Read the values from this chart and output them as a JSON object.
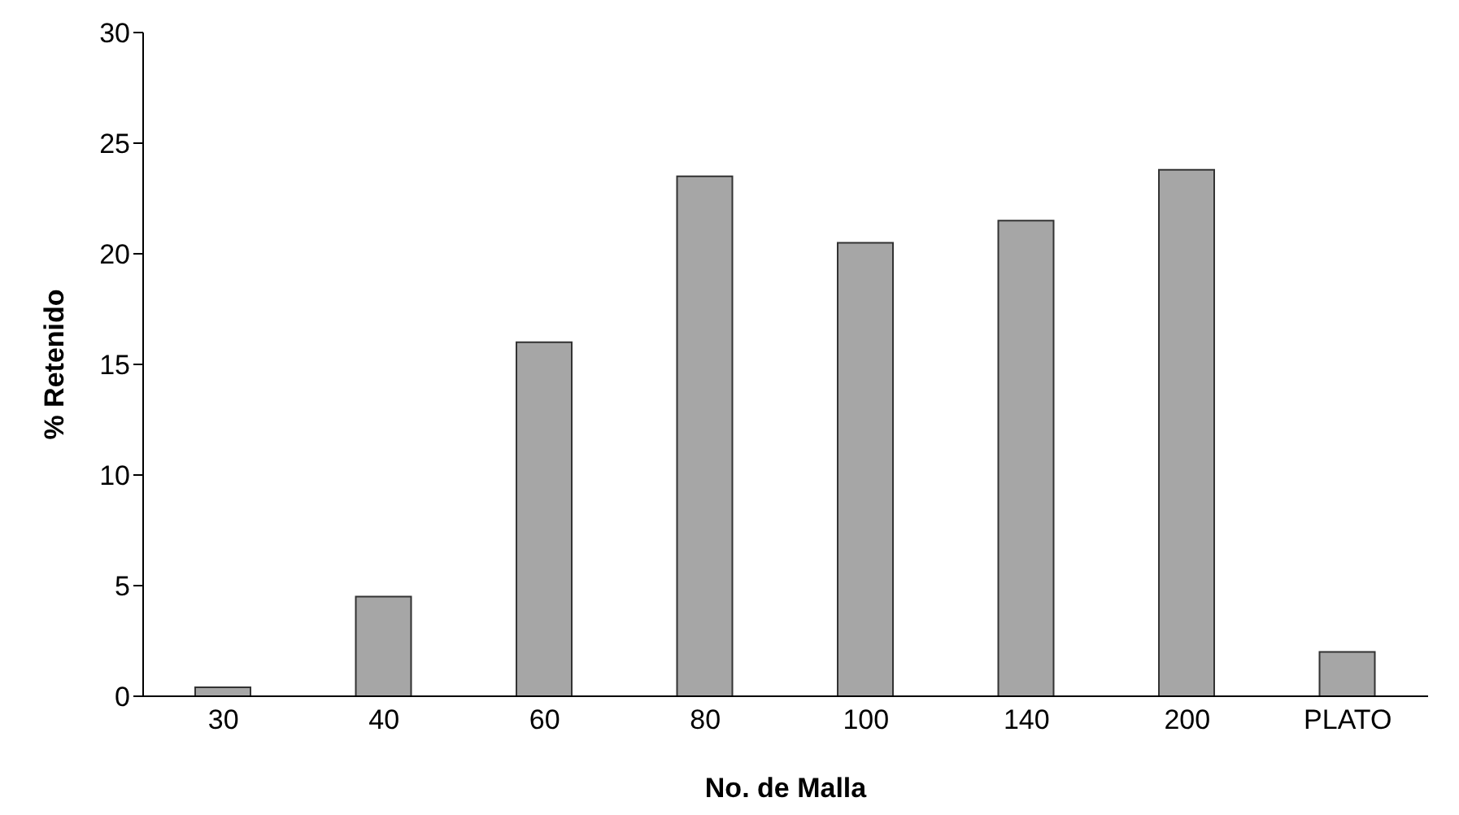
{
  "chart_data": {
    "type": "bar",
    "xlabel": "No. de Malla",
    "ylabel": "% Retenido",
    "categories": [
      "30",
      "40",
      "60",
      "80",
      "100",
      "140",
      "200",
      "PLATO"
    ],
    "values": [
      0.4,
      4.5,
      16,
      23.5,
      20.5,
      21.5,
      23.8,
      2
    ],
    "color": "#a6a6a6",
    "ylim": [
      0,
      30
    ],
    "yticks": [
      0,
      5,
      10,
      15,
      20,
      25,
      30
    ],
    "grid": false,
    "legend": false
  }
}
